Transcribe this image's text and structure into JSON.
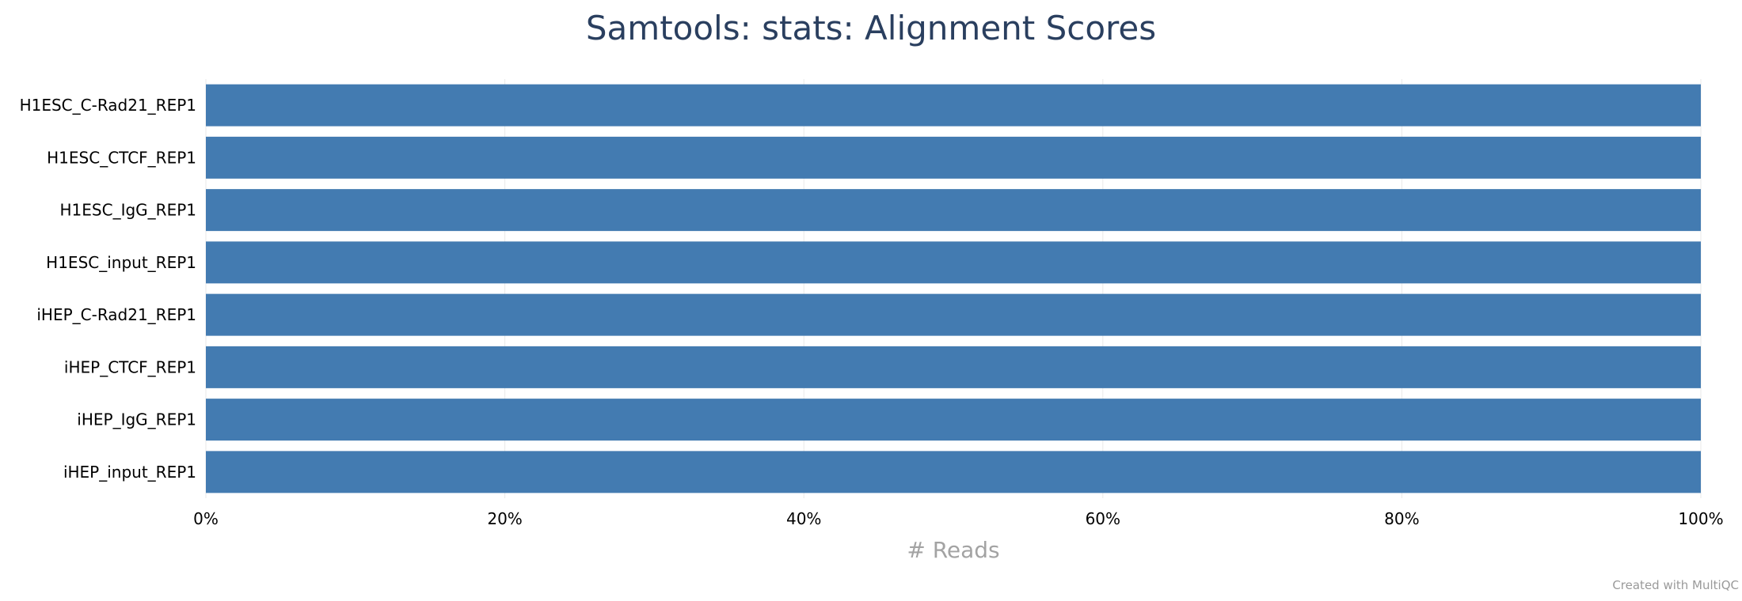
{
  "chart_data": {
    "type": "bar",
    "orientation": "horizontal",
    "stacked": true,
    "title": "Samtools: stats: Alignment Scores",
    "xlabel": "# Reads",
    "ylabel": "",
    "xlim": [
      0,
      100
    ],
    "x_ticks": [
      "0%",
      "20%",
      "40%",
      "60%",
      "80%",
      "100%"
    ],
    "x_tick_values": [
      0,
      20,
      40,
      60,
      80,
      100
    ],
    "grid": true,
    "categories": [
      "H1ESC_C-Rad21_REP1",
      "H1ESC_CTCF_REP1",
      "H1ESC_IgG_REP1",
      "H1ESC_input_REP1",
      "iHEP_C-Rad21_REP1",
      "iHEP_CTCF_REP1",
      "iHEP_IgG_REP1",
      "iHEP_input_REP1"
    ],
    "series": [
      {
        "values": [
          100,
          100,
          100,
          100,
          100,
          100,
          100,
          100
        ],
        "color": "#437bb1"
      }
    ]
  },
  "footer": {
    "credit": "Created with MultiQC"
  }
}
